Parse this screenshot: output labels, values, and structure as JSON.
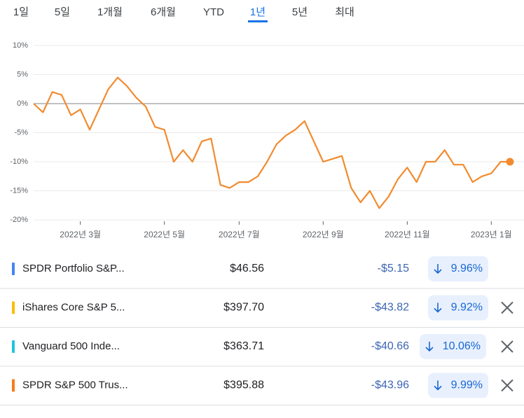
{
  "tabs": {
    "items": [
      "1일",
      "5일",
      "1개월",
      "6개월",
      "YTD",
      "1년",
      "5년",
      "최대"
    ],
    "selected": 5
  },
  "chart_data": {
    "type": "line",
    "categories": [
      null,
      null,
      null,
      null,
      null,
      "2022년 3월",
      null,
      null,
      null,
      null,
      null,
      null,
      null,
      null,
      "2022년 5월",
      null,
      null,
      null,
      null,
      null,
      null,
      null,
      "2022년 7월",
      null,
      null,
      null,
      null,
      null,
      null,
      null,
      null,
      "2022년 9월",
      null,
      null,
      null,
      null,
      null,
      null,
      null,
      null,
      "2022년 11월",
      null,
      null,
      null,
      null,
      null,
      null,
      null,
      null,
      "2023년 1월",
      null,
      null
    ],
    "series": [
      {
        "color": "#f28b2e",
        "values": [
          0,
          -1.5,
          2,
          1.5,
          -2,
          -1,
          -4.5,
          -1,
          2.5,
          4.5,
          3,
          1,
          -0.5,
          -4,
          -4.5,
          -10,
          -8,
          -10,
          -6.5,
          -6,
          -14,
          -14.5,
          -13.5,
          -13.5,
          -12.5,
          -10,
          -7,
          -5.5,
          -4.5,
          -3,
          -6.5,
          -10,
          -9.5,
          -9,
          -14.5,
          -17,
          -15,
          -18,
          -16,
          -13,
          -11,
          -13.5,
          -10,
          -10,
          -8,
          -10.5,
          -10.5,
          -13.5,
          -12.5,
          -12,
          -10,
          -10
        ]
      }
    ],
    "ylim": [
      -20,
      10
    ],
    "yticks": [
      {
        "value": 10,
        "label": "10%"
      },
      {
        "value": 5,
        "label": "5%"
      },
      {
        "value": 0,
        "label": "0%"
      },
      {
        "value": -5,
        "label": "-5%"
      },
      {
        "value": -10,
        "label": "-10%"
      },
      {
        "value": -15,
        "label": "-15%"
      },
      {
        "value": -20,
        "label": "-20%"
      }
    ],
    "grid": true
  },
  "table": {
    "rows": [
      {
        "name": "SPDR Portfolio S&P...",
        "price": "$46.56",
        "change": "-$5.15",
        "percent": "9.96%",
        "color": "#4285f4",
        "removable": false
      },
      {
        "name": "iShares Core S&P 5...",
        "price": "$397.70",
        "change": "-$43.82",
        "percent": "9.92%",
        "color": "#fbbc04",
        "removable": true
      },
      {
        "name": "Vanguard 500 Inde...",
        "price": "$363.71",
        "change": "-$40.66",
        "percent": "10.06%",
        "color": "#24c1e0",
        "removable": true
      },
      {
        "name": "SPDR S&P 500 Trus...",
        "price": "$395.88",
        "change": "-$43.96",
        "percent": "9.99%",
        "color": "#fa7b17",
        "removable": true
      }
    ]
  }
}
